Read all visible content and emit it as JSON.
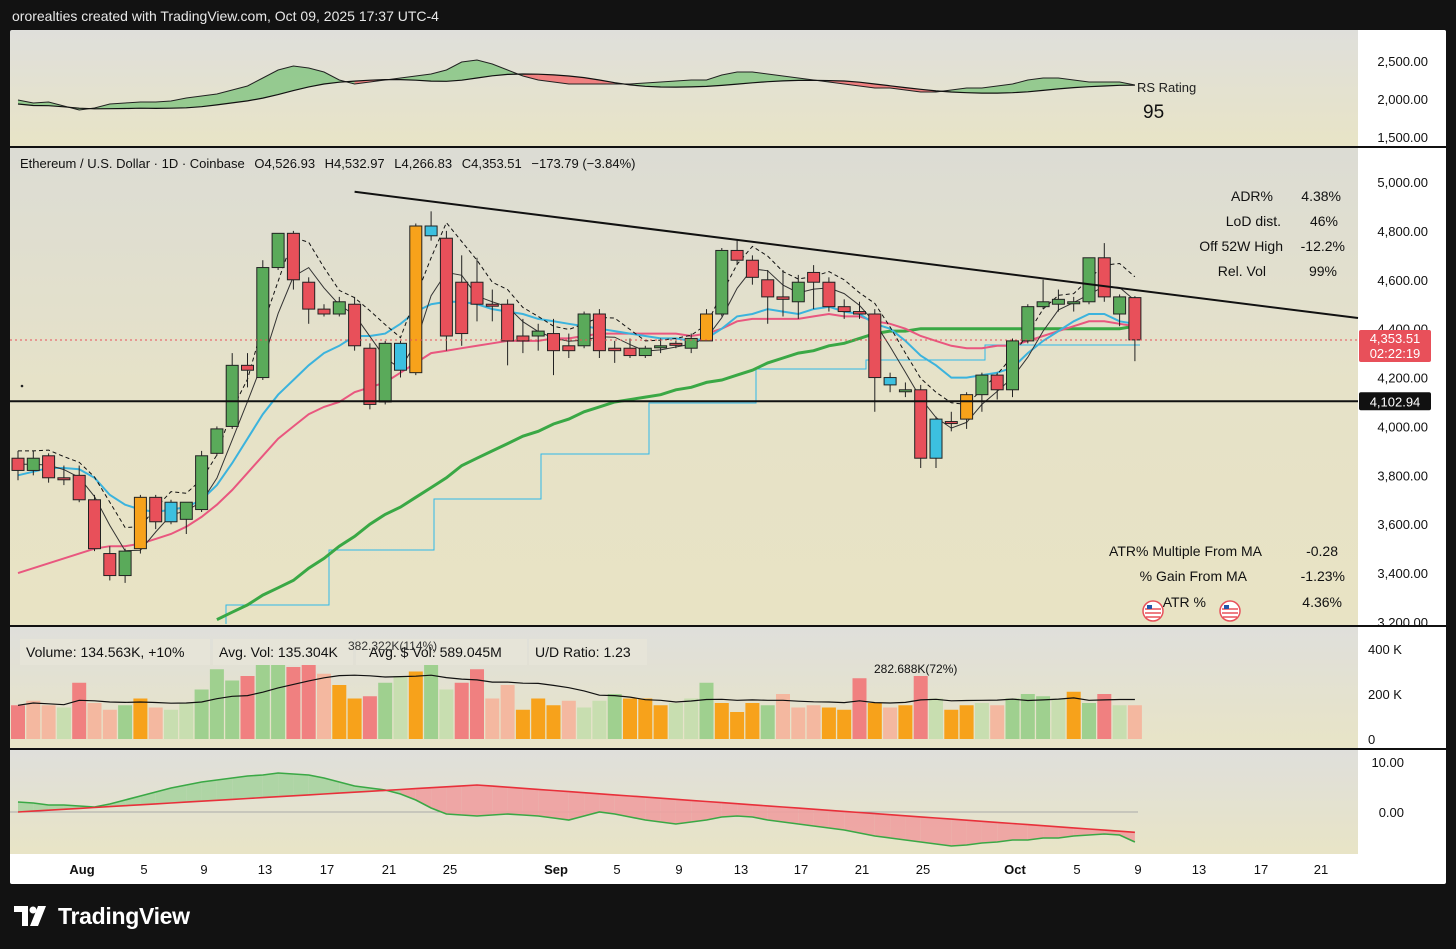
{
  "header": {
    "credit": "ororealties created with TradingView.com, Oct 09, 2025 17:37 UTC-4"
  },
  "brand": {
    "name": "TradingView"
  },
  "colors": {
    "bg": "#e4e1cb",
    "up": "#5aaa5a",
    "down": "#e8505a",
    "orange": "#f7a21b",
    "cyan": "#3cc0e0",
    "ema_fast": "#3bb3dd",
    "ema_slow": "#e9577f",
    "sma": "#3aa845",
    "step": "#2fb8e8",
    "vol_up": "#9fd08f",
    "vol_down": "#f08080",
    "vol_orange": "#f7a21b",
    "vol_light": "#c8deb0",
    "vol_salmon": "#f4b8a0"
  },
  "rs_panel": {
    "label": "RS Rating",
    "value": "95",
    "ticks": [
      "2,500.00",
      "2,000.00",
      "1,500.00"
    ]
  },
  "price_panel": {
    "title": "Ethereum / U.S. Dollar · 1D · Coinbase",
    "ohlc": {
      "o": "O4,526.93",
      "h": "H4,532.97",
      "l": "L4,266.83",
      "c": "C4,353.51",
      "chg": "−173.79 (−3.84%)"
    },
    "ticks": [
      "5,000.00",
      "4,800.00",
      "4,600.00",
      "4,400.00",
      "4,200.00",
      "4,000.00",
      "3,800.00",
      "3,600.00",
      "3,400.00",
      "3,200.00"
    ],
    "last_price": "4,353.51",
    "countdown": "02:22:19",
    "support": "4,102.94",
    "stats_top": [
      {
        "label": "ADR%",
        "value": "4.38%"
      },
      {
        "label": "LoD dist.",
        "value": "46%"
      },
      {
        "label": "Off 52W High",
        "value": "-12.2%"
      },
      {
        "label": "Rel. Vol",
        "value": "99%"
      }
    ],
    "stats_bottom": [
      {
        "label": "ATR% Multiple From MA",
        "value": "-0.28"
      },
      {
        "label": "% Gain From MA",
        "value": "-1.23%"
      },
      {
        "label": "ATR %",
        "value": "4.36%"
      }
    ]
  },
  "volume_panel": {
    "volume": "Volume: 134.563K, +10%",
    "avg_vol": "Avg. Vol: 135.304K",
    "avg_dollar_vol": "Avg. $ Vol: 589.045M",
    "ud_ratio": "U/D Ratio: 1.23",
    "peak_label_1": "382.322K(114%)",
    "peak_label_2": "282.688K(72%)",
    "ticks": [
      "400 K",
      "200 K",
      "0"
    ]
  },
  "osc_panel": {
    "ticks": [
      "10.00",
      "0.00"
    ]
  },
  "x_axis": {
    "labels": [
      {
        "text": "Aug",
        "bold": true
      },
      {
        "text": "5"
      },
      {
        "text": "9"
      },
      {
        "text": "13"
      },
      {
        "text": "17"
      },
      {
        "text": "21"
      },
      {
        "text": "25"
      },
      {
        "text": "Sep",
        "bold": true
      },
      {
        "text": "5"
      },
      {
        "text": "9"
      },
      {
        "text": "13"
      },
      {
        "text": "17"
      },
      {
        "text": "21"
      },
      {
        "text": "25"
      },
      {
        "text": "Oct",
        "bold": true
      },
      {
        "text": "5"
      },
      {
        "text": "9"
      },
      {
        "text": "13"
      },
      {
        "text": "17"
      },
      {
        "text": "21"
      }
    ]
  },
  "chart_data": {
    "type": "candlestick",
    "title": "Ethereum / U.S. Dollar · 1D · Coinbase",
    "ylim": [
      3200,
      5050
    ],
    "candles": [
      {
        "o": 3870,
        "h": 3900,
        "l": 3780,
        "c": 3820,
        "k": "down"
      },
      {
        "o": 3820,
        "h": 3900,
        "l": 3800,
        "c": 3870,
        "k": "up"
      },
      {
        "o": 3880,
        "h": 3890,
        "l": 3770,
        "c": 3790,
        "k": "down"
      },
      {
        "o": 3790,
        "h": 3840,
        "l": 3760,
        "c": 3790,
        "k": "down"
      },
      {
        "o": 3800,
        "h": 3840,
        "l": 3690,
        "c": 3700,
        "k": "down"
      },
      {
        "o": 3700,
        "h": 3720,
        "l": 3490,
        "c": 3500,
        "k": "down"
      },
      {
        "o": 3480,
        "h": 3510,
        "l": 3370,
        "c": 3390,
        "k": "down"
      },
      {
        "o": 3390,
        "h": 3500,
        "l": 3360,
        "c": 3490,
        "k": "up"
      },
      {
        "o": 3500,
        "h": 3720,
        "l": 3480,
        "c": 3710,
        "k": "orange"
      },
      {
        "o": 3710,
        "h": 3720,
        "l": 3580,
        "c": 3610,
        "k": "down"
      },
      {
        "o": 3610,
        "h": 3700,
        "l": 3600,
        "c": 3690,
        "k": "cyan"
      },
      {
        "o": 3620,
        "h": 3690,
        "l": 3560,
        "c": 3690,
        "k": "up"
      },
      {
        "o": 3660,
        "h": 3900,
        "l": 3650,
        "c": 3880,
        "k": "up"
      },
      {
        "o": 3890,
        "h": 4000,
        "l": 3880,
        "c": 3990,
        "k": "up"
      },
      {
        "o": 4000,
        "h": 4300,
        "l": 3990,
        "c": 4250,
        "k": "up"
      },
      {
        "o": 4230,
        "h": 4300,
        "l": 4160,
        "c": 4250,
        "k": "down"
      },
      {
        "o": 4200,
        "h": 4680,
        "l": 4190,
        "c": 4650,
        "k": "up"
      },
      {
        "o": 4650,
        "h": 4790,
        "l": 4640,
        "c": 4790,
        "k": "up"
      },
      {
        "o": 4790,
        "h": 4800,
        "l": 4560,
        "c": 4600,
        "k": "down"
      },
      {
        "o": 4590,
        "h": 4610,
        "l": 4420,
        "c": 4480,
        "k": "down"
      },
      {
        "o": 4480,
        "h": 4500,
        "l": 4450,
        "c": 4460,
        "k": "down"
      },
      {
        "o": 4460,
        "h": 4530,
        "l": 4450,
        "c": 4510,
        "k": "up"
      },
      {
        "o": 4500,
        "h": 4530,
        "l": 4310,
        "c": 4330,
        "k": "down"
      },
      {
        "o": 4320,
        "h": 4340,
        "l": 4070,
        "c": 4090,
        "k": "down"
      },
      {
        "o": 4100,
        "h": 4350,
        "l": 4090,
        "c": 4340,
        "k": "up"
      },
      {
        "o": 4340,
        "h": 4350,
        "l": 4200,
        "c": 4230,
        "k": "cyan"
      },
      {
        "o": 4220,
        "h": 4830,
        "l": 4210,
        "c": 4820,
        "k": "orange"
      },
      {
        "o": 4820,
        "h": 4880,
        "l": 4760,
        "c": 4780,
        "k": "cyan"
      },
      {
        "o": 4770,
        "h": 4800,
        "l": 4310,
        "c": 4370,
        "k": "down"
      },
      {
        "o": 4380,
        "h": 4700,
        "l": 4330,
        "c": 4590,
        "k": "down"
      },
      {
        "o": 4590,
        "h": 4690,
        "l": 4430,
        "c": 4500,
        "k": "down"
      },
      {
        "o": 4500,
        "h": 4560,
        "l": 4430,
        "c": 4500,
        "k": "down"
      },
      {
        "o": 4500,
        "h": 4520,
        "l": 4250,
        "c": 4350,
        "k": "down"
      },
      {
        "o": 4350,
        "h": 4440,
        "l": 4300,
        "c": 4370,
        "k": "down"
      },
      {
        "o": 4370,
        "h": 4420,
        "l": 4310,
        "c": 4390,
        "k": "up"
      },
      {
        "o": 4380,
        "h": 4440,
        "l": 4210,
        "c": 4310,
        "k": "down"
      },
      {
        "o": 4310,
        "h": 4380,
        "l": 4280,
        "c": 4330,
        "k": "down"
      },
      {
        "o": 4330,
        "h": 4470,
        "l": 4320,
        "c": 4460,
        "k": "up"
      },
      {
        "o": 4460,
        "h": 4480,
        "l": 4280,
        "c": 4310,
        "k": "down"
      },
      {
        "o": 4310,
        "h": 4350,
        "l": 4260,
        "c": 4320,
        "k": "down"
      },
      {
        "o": 4320,
        "h": 4360,
        "l": 4280,
        "c": 4290,
        "k": "down"
      },
      {
        "o": 4290,
        "h": 4330,
        "l": 4280,
        "c": 4320,
        "k": "up"
      },
      {
        "o": 4330,
        "h": 4360,
        "l": 4300,
        "c": 4330,
        "k": "up"
      },
      {
        "o": 4340,
        "h": 4350,
        "l": 4320,
        "c": 4340,
        "k": "down"
      },
      {
        "o": 4320,
        "h": 4380,
        "l": 4300,
        "c": 4360,
        "k": "up"
      },
      {
        "o": 4350,
        "h": 4480,
        "l": 4350,
        "c": 4460,
        "k": "orange"
      },
      {
        "o": 4460,
        "h": 4730,
        "l": 4450,
        "c": 4720,
        "k": "up"
      },
      {
        "o": 4720,
        "h": 4760,
        "l": 4660,
        "c": 4680,
        "k": "down"
      },
      {
        "o": 4680,
        "h": 4700,
        "l": 4580,
        "c": 4610,
        "k": "down"
      },
      {
        "o": 4600,
        "h": 4640,
        "l": 4420,
        "c": 4530,
        "k": "down"
      },
      {
        "o": 4530,
        "h": 4640,
        "l": 4450,
        "c": 4520,
        "k": "down"
      },
      {
        "o": 4510,
        "h": 4620,
        "l": 4440,
        "c": 4590,
        "k": "up"
      },
      {
        "o": 4590,
        "h": 4660,
        "l": 4480,
        "c": 4630,
        "k": "down"
      },
      {
        "o": 4590,
        "h": 4610,
        "l": 4470,
        "c": 4490,
        "k": "down"
      },
      {
        "o": 4490,
        "h": 4520,
        "l": 4440,
        "c": 4470,
        "k": "down"
      },
      {
        "o": 4470,
        "h": 4510,
        "l": 4440,
        "c": 4460,
        "k": "down"
      },
      {
        "o": 4460,
        "h": 4480,
        "l": 4060,
        "c": 4200,
        "k": "down"
      },
      {
        "o": 4200,
        "h": 4220,
        "l": 4140,
        "c": 4170,
        "k": "cyan"
      },
      {
        "o": 4150,
        "h": 4180,
        "l": 4120,
        "c": 4150,
        "k": "up"
      },
      {
        "o": 4150,
        "h": 4170,
        "l": 3830,
        "c": 3870,
        "k": "down"
      },
      {
        "o": 3870,
        "h": 4040,
        "l": 3830,
        "c": 4030,
        "k": "cyan"
      },
      {
        "o": 4020,
        "h": 4060,
        "l": 3980,
        "c": 4020,
        "k": "down"
      },
      {
        "o": 4030,
        "h": 4140,
        "l": 3990,
        "c": 4130,
        "k": "orange"
      },
      {
        "o": 4130,
        "h": 4220,
        "l": 4060,
        "c": 4210,
        "k": "up"
      },
      {
        "o": 4210,
        "h": 4220,
        "l": 4110,
        "c": 4150,
        "k": "down"
      },
      {
        "o": 4150,
        "h": 4360,
        "l": 4120,
        "c": 4350,
        "k": "up"
      },
      {
        "o": 4350,
        "h": 4500,
        "l": 4340,
        "c": 4490,
        "k": "up"
      },
      {
        "o": 4490,
        "h": 4600,
        "l": 4480,
        "c": 4510,
        "k": "up"
      },
      {
        "o": 4500,
        "h": 4560,
        "l": 4470,
        "c": 4520,
        "k": "up"
      },
      {
        "o": 4510,
        "h": 4530,
        "l": 4470,
        "c": 4510,
        "k": "up"
      },
      {
        "o": 4510,
        "h": 4690,
        "l": 4500,
        "c": 4690,
        "k": "up"
      },
      {
        "o": 4690,
        "h": 4750,
        "l": 4510,
        "c": 4530,
        "k": "down"
      },
      {
        "o": 4530,
        "h": 4540,
        "l": 4410,
        "c": 4460,
        "k": "up"
      },
      {
        "o": 4527,
        "h": 4533,
        "l": 4267,
        "c": 4354,
        "k": "down"
      }
    ],
    "ema_fast": [
      3800,
      3815,
      3830,
      3830,
      3825,
      3790,
      3720,
      3680,
      3660,
      3650,
      3660,
      3670,
      3700,
      3760,
      3850,
      3950,
      4050,
      4130,
      4190,
      4250,
      4300,
      4330,
      4370,
      4370,
      4380,
      4420,
      4470,
      4500,
      4510,
      4510,
      4500,
      4480,
      4470,
      4460,
      4440,
      4430,
      4420,
      4410,
      4400,
      4390,
      4380,
      4370,
      4360,
      4360,
      4350,
      4360,
      4400,
      4450,
      4460,
      4480,
      4470,
      4460,
      4480,
      4490,
      4470,
      4460,
      4420,
      4400,
      4350,
      4290,
      4250,
      4200,
      4200,
      4210,
      4220,
      4240,
      4300,
      4350,
      4390,
      4430,
      4460,
      4460,
      4430,
      4420
    ],
    "ema_slow": [
      3400,
      3420,
      3440,
      3460,
      3480,
      3500,
      3510,
      3510,
      3520,
      3540,
      3560,
      3590,
      3630,
      3680,
      3740,
      3810,
      3880,
      3950,
      4000,
      4050,
      4080,
      4100,
      4140,
      4160,
      4180,
      4220,
      4260,
      4300,
      4310,
      4320,
      4330,
      4340,
      4350,
      4350,
      4350,
      4360,
      4360,
      4370,
      4380,
      4380,
      4380,
      4380,
      4380,
      4380,
      4370,
      4380,
      4400,
      4430,
      4440,
      4440,
      4440,
      4440,
      4450,
      4460,
      4450,
      4450,
      4430,
      4420,
      4400,
      4370,
      4350,
      4330,
      4320,
      4320,
      4330,
      4330,
      4350,
      4370,
      4390,
      4410,
      4430,
      4430,
      4420,
      4410
    ],
    "sma": [
      null,
      null,
      null,
      null,
      null,
      null,
      null,
      null,
      null,
      null,
      null,
      null,
      null,
      3210,
      3240,
      3270,
      3310,
      3340,
      3370,
      3420,
      3460,
      3510,
      3550,
      3600,
      3640,
      3670,
      3710,
      3750,
      3790,
      3840,
      3870,
      3900,
      3930,
      3960,
      3980,
      4010,
      4030,
      4060,
      4080,
      4100,
      4110,
      4120,
      4130,
      4150,
      4160,
      4180,
      4190,
      4210,
      4230,
      4260,
      4280,
      4300,
      4310,
      4330,
      4340,
      4360,
      4380,
      4390,
      4390,
      4400,
      4400,
      4400,
      4400,
      4400,
      4400,
      4400,
      4400,
      4400,
      4400,
      4400,
      4400,
      4400,
      4400,
      4410
    ],
    "trendline": [
      [
        22,
        4960
      ],
      [
        95,
        4385
      ]
    ],
    "support_level": 4102.94,
    "volume": [
      150,
      170,
      150,
      140,
      250,
      160,
      130,
      150,
      180,
      140,
      130,
      160,
      220,
      310,
      260,
      280,
      330,
      340,
      320,
      350,
      290,
      240,
      180,
      190,
      250,
      280,
      300,
      380,
      220,
      250,
      310,
      180,
      240,
      130,
      180,
      150,
      170,
      140,
      170,
      200,
      180,
      180,
      150,
      160,
      180,
      250,
      160,
      120,
      160,
      150,
      200,
      140,
      150,
      140,
      130,
      270,
      160,
      140,
      150,
      280,
      180,
      130,
      150,
      160,
      150,
      180,
      200,
      190,
      180,
      210,
      160,
      200,
      150,
      150
    ]
  }
}
